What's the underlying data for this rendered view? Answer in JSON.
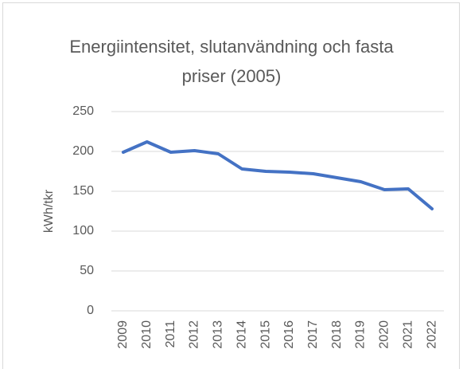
{
  "chart_data": {
    "type": "line",
    "title": "Energiintensitet, slutanvändning och fasta priser (2005)",
    "y_label": "kWh/tkr",
    "categories": [
      "2009",
      "2010",
      "2011",
      "2012",
      "2013",
      "2014",
      "2015",
      "2016",
      "2017",
      "2018",
      "2019",
      "2020",
      "2021",
      "2022"
    ],
    "series": [
      {
        "name": "Energiintensitet",
        "color": "#4472c4",
        "values": [
          199,
          212,
          199,
          201,
          197,
          178,
          175,
          174,
          172,
          167,
          162,
          152,
          153,
          128
        ]
      }
    ],
    "ylim": [
      0,
      250
    ],
    "yticks": [
      0,
      50,
      100,
      150,
      200,
      250
    ],
    "grid": true
  }
}
